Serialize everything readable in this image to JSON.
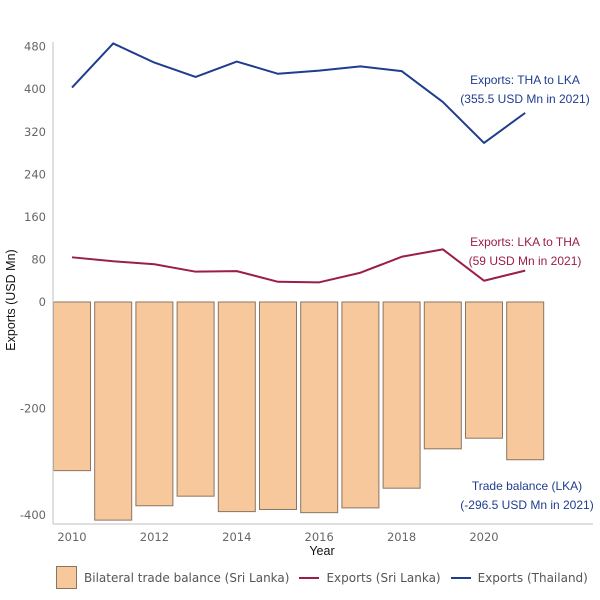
{
  "chart_data": {
    "type": "bar+line",
    "title": "",
    "xlabel": "Year",
    "ylabel": "Exports (USD Mn)",
    "ylim": [
      -420,
      490
    ],
    "grid": false,
    "categories": [
      2010,
      2011,
      2012,
      2013,
      2014,
      2015,
      2016,
      2017,
      2018,
      2019,
      2020,
      2021
    ],
    "x_ticks": [
      "2010",
      "2012",
      "2014",
      "2016",
      "2018",
      "2020"
    ],
    "y_ticks_upper": [
      "480",
      "400",
      "320",
      "240",
      "160",
      "80",
      "0"
    ],
    "y_ticks_upper_values": [
      480,
      400,
      320,
      240,
      160,
      80,
      0
    ],
    "y_ticks_lower": [
      "-200",
      "-400"
    ],
    "y_ticks_lower_values": [
      -200,
      -400
    ],
    "series": [
      {
        "name": "Bilateral trade balance (Sri Lanka)",
        "type": "bar",
        "color": "#f7c89b",
        "edge_color": "#8a7560",
        "values": [
          -317,
          -410,
          -383,
          -365,
          -394,
          -390,
          -396,
          -387,
          -350,
          -276,
          -256,
          -296.5
        ]
      },
      {
        "name": "Exports (Sri Lanka)",
        "type": "line",
        "color": "#9b1d4a",
        "values": [
          84,
          76.5,
          71,
          57,
          58,
          38,
          37,
          55,
          85,
          99,
          40,
          59
        ]
      },
      {
        "name": "Exports (Thailand)",
        "type": "line",
        "color": "#1f3d8f",
        "values": [
          403,
          486,
          450,
          423,
          452,
          429,
          435,
          443,
          434,
          376,
          299,
          355.5
        ]
      }
    ],
    "annotations": [
      {
        "series": "Exports (Thailand)",
        "line1": "Exports: THA to LKA",
        "line2": "(355.5 USD Mn in 2021)",
        "color": "#1f3d8f"
      },
      {
        "series": "Exports (Sri Lanka)",
        "line1": "Exports: LKA to THA",
        "line2": "(59 USD Mn in 2021)",
        "color": "#9b1d4a"
      },
      {
        "series": "Bilateral trade balance (Sri Lanka)",
        "line1": "Trade balance (LKA)",
        "line2": "(-296.5 USD Mn in 2021)",
        "color": "#1f3d8f"
      }
    ],
    "legend": {
      "placement": "bottom",
      "items": [
        {
          "label": "Bilateral trade balance (Sri Lanka)",
          "kind": "swatch",
          "color": "#f7c89b"
        },
        {
          "label": "Exports (Sri Lanka)",
          "kind": "line",
          "color": "#9b1d4a"
        },
        {
          "label": "Exports (Thailand)",
          "kind": "line",
          "color": "#1f3d8f"
        }
      ]
    }
  }
}
